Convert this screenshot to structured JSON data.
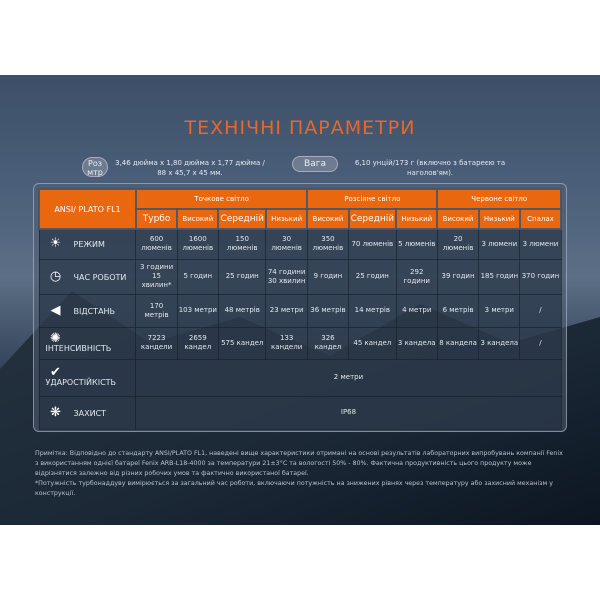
{
  "title": "ТЕХНІЧНІ ПАРАМЕТРИ",
  "size": {
    "label": "Роз мтр",
    "value_line1": "3,46 дюйма x 1,80 дюйма x 1,77 дюйма /",
    "value_line2": "88 x 45,7 x 45 мм."
  },
  "weight": {
    "label": "Вага",
    "value_line1": "6,10 унцій/173 г (включно з батареєю та",
    "value_line2": "наголов'ям)."
  },
  "table": {
    "corner": "ANSI/ PLATO FL1",
    "groups": [
      "Точкове світло",
      "Розсіяне світло",
      "Червоне світло"
    ],
    "modes": [
      "Турбо",
      "Високий",
      "Середній",
      "Низький",
      "Високий",
      "Середній",
      "Низький",
      "Високий",
      "Низький",
      "Спалах"
    ],
    "rows": [
      {
        "label": "РЕЖИМ",
        "icon": "sun-rays-icon",
        "cells": [
          "600 люменів",
          "1600 люменів",
          "150 люменів",
          "30 люменів",
          "350 люменів",
          "70 люменів",
          "5 люменів",
          "20 люменів",
          "3 люмени",
          "3 люмени"
        ]
      },
      {
        "label": "ЧАС РОБОТИ",
        "icon": "clock-icon",
        "cells": [
          "3 години 15 хвилин*",
          "5 годин",
          "25 годин",
          "74 години 30 хвилин",
          "9 годин",
          "25 годин",
          "292 години",
          "39 годин",
          "185 годин",
          "370 годин"
        ]
      },
      {
        "label": "ВІДСТАНЬ",
        "icon": "beam-distance-icon",
        "cells": [
          "170 метрів",
          "103 метри",
          "48 метрів",
          "23 метри",
          "36 метрів",
          "14 метрів",
          "4 метри",
          "6 метрів",
          "3 метри",
          "/"
        ]
      },
      {
        "label": "ІНТЕНСИВНІСТЬ",
        "icon": "intensity-icon",
        "cells": [
          "7223 кандели",
          "2659 кандел",
          "575 кандел",
          "133 кандели",
          "326 кандел",
          "45 кандел",
          "3 кандела",
          "8 кандела",
          "3 кандела",
          "/"
        ]
      }
    ],
    "impact": {
      "label": "УДАРОСТІЙКІСТЬ",
      "icon": "impact-icon",
      "value": "2 метри"
    },
    "protection": {
      "label": "ЗАХИСТ",
      "icon": "waterproof-icon",
      "value": "IP68"
    }
  },
  "note": "Примітка: Відповідно до стандарту ANSI/PLATO FL1, наведені вище характеристики отримані на основі результатів лабораторних випробувань компанії Fenix з використанням однієї батареї Fenix ARB-L18-4000 за температури 21±3°C та вологості 50% - 80%. Фактична продуктивність цього продукту може відрізнятися залежно від різних робочих умов та фактично використаної батареї.",
  "note2": "*Потужність турбонаддуву вимірюється за загальний час роботи, включаючи потужність на знижених рівнях через температуру або захисний механізм у конструкції."
}
